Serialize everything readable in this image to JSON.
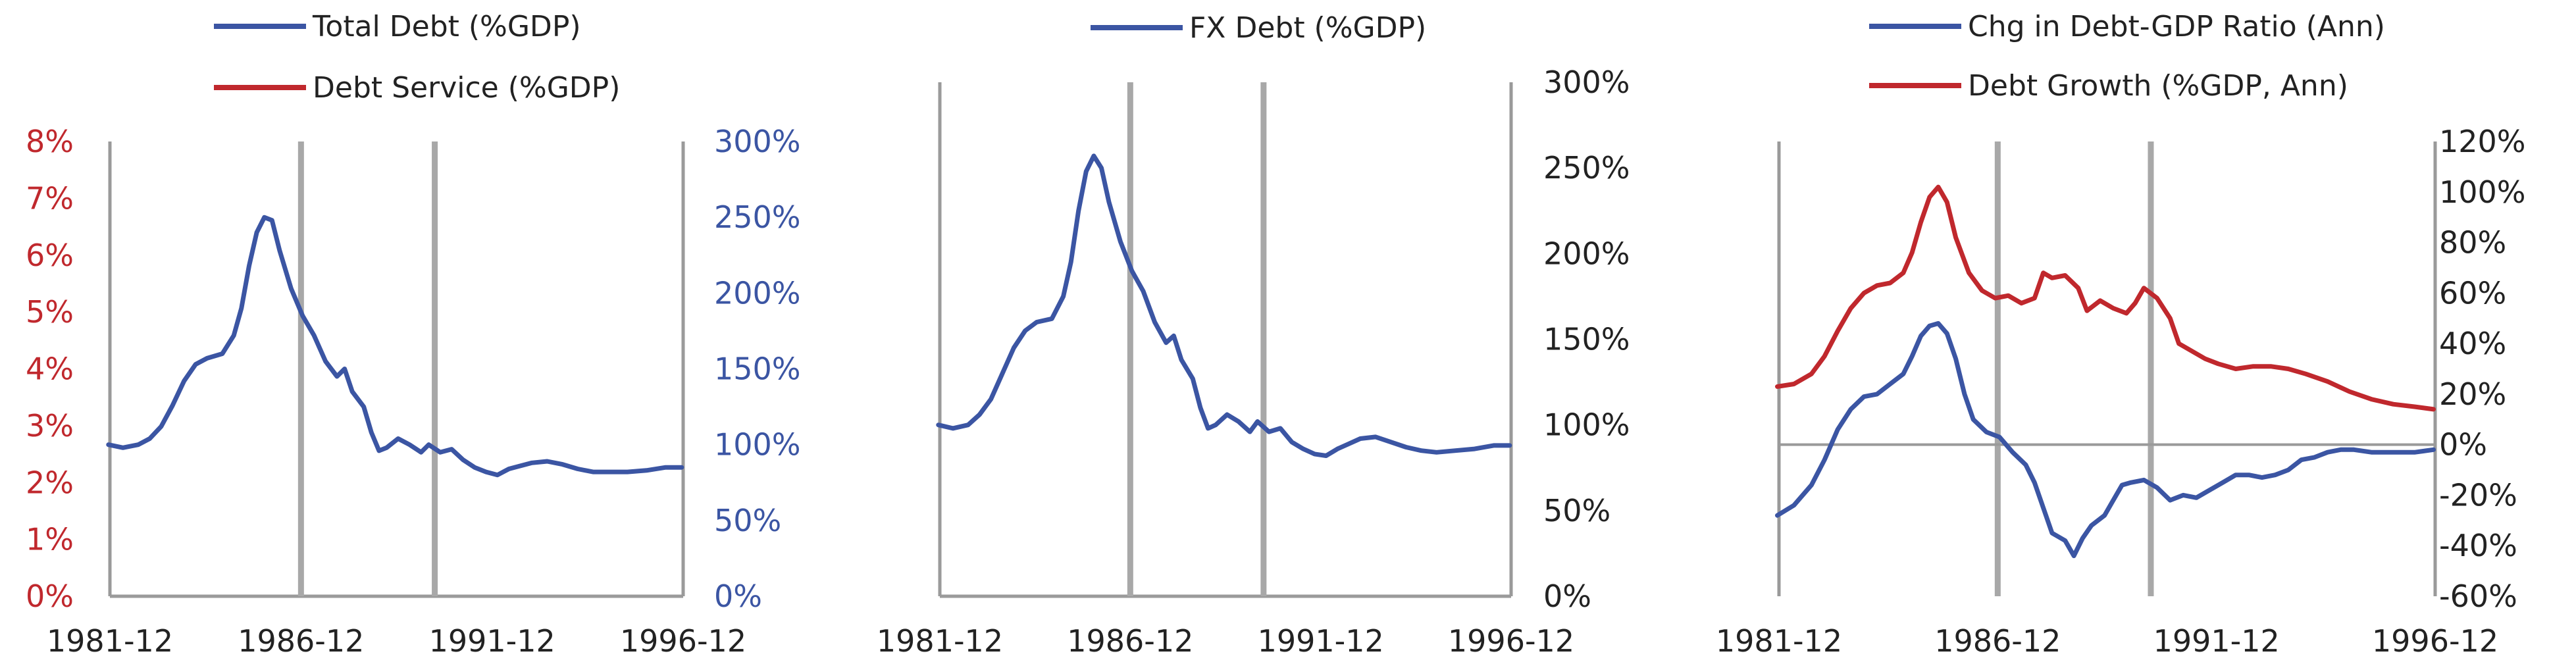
{
  "chart_data": [
    {
      "type": "line",
      "title": "",
      "x_ticks": [
        "1981-12",
        "1986-12",
        "1991-12",
        "1996-12"
      ],
      "xlim": [
        "1981-12",
        "1996-12"
      ],
      "event_lines": [
        "1986-12",
        "1990-06"
      ],
      "left_axis": {
        "ticks": [
          "0%",
          "1%",
          "2%",
          "3%",
          "4%",
          "5%",
          "6%",
          "7%",
          "8%"
        ],
        "ylim": [
          0,
          8
        ],
        "color": "#c0282d"
      },
      "right_axis": {
        "ticks": [
          "0%",
          "50%",
          "100%",
          "150%",
          "200%",
          "250%",
          "300%"
        ],
        "ylim": [
          0,
          300
        ],
        "color": "#3b55a3"
      },
      "legend": [
        "Total Debt (%GDP)",
        "Debt Service (%GDP)"
      ],
      "series": [
        {
          "name": "Total Debt (%GDP)",
          "axis": "right",
          "color": "#3b55a3",
          "points": [
            [
              1981.92,
              100
            ],
            [
              1982.3,
              98
            ],
            [
              1982.7,
              100
            ],
            [
              1983.0,
              104
            ],
            [
              1983.3,
              112
            ],
            [
              1983.6,
              126
            ],
            [
              1983.9,
              142
            ],
            [
              1984.2,
              153
            ],
            [
              1984.5,
              157
            ],
            [
              1984.9,
              160
            ],
            [
              1985.2,
              172
            ],
            [
              1985.4,
              190
            ],
            [
              1985.6,
              218
            ],
            [
              1985.8,
              240
            ],
            [
              1986.0,
              250
            ],
            [
              1986.2,
              248
            ],
            [
              1986.4,
              228
            ],
            [
              1986.7,
              203
            ],
            [
              1987.0,
              185
            ],
            [
              1987.3,
              172
            ],
            [
              1987.6,
              155
            ],
            [
              1987.9,
              145
            ],
            [
              1988.1,
              150
            ],
            [
              1988.3,
              135
            ],
            [
              1988.6,
              125
            ],
            [
              1988.8,
              108
            ],
            [
              1989.0,
              96
            ],
            [
              1989.2,
              98
            ],
            [
              1989.5,
              104
            ],
            [
              1989.8,
              100
            ],
            [
              1990.1,
              95
            ],
            [
              1990.3,
              100
            ],
            [
              1990.6,
              95
            ],
            [
              1990.9,
              97
            ],
            [
              1991.2,
              90
            ],
            [
              1991.5,
              85
            ],
            [
              1991.8,
              82
            ],
            [
              1992.1,
              80
            ],
            [
              1992.4,
              84
            ],
            [
              1992.7,
              86
            ],
            [
              1993.0,
              88
            ],
            [
              1993.4,
              89
            ],
            [
              1993.8,
              87
            ],
            [
              1994.2,
              84
            ],
            [
              1994.6,
              82
            ],
            [
              1995.0,
              82
            ],
            [
              1995.5,
              82
            ],
            [
              1996.0,
              83
            ],
            [
              1996.5,
              85
            ],
            [
              1996.92,
              85
            ]
          ]
        },
        {
          "name": "Debt Service (%GDP)",
          "axis": "left",
          "color": "#c0282d",
          "points": []
        }
      ]
    },
    {
      "type": "line",
      "title": "",
      "x_ticks": [
        "1981-12",
        "1986-12",
        "1991-12",
        "1996-12"
      ],
      "xlim": [
        "1981-12",
        "1996-12"
      ],
      "event_lines": [
        "1986-12",
        "1990-06"
      ],
      "right_axis": {
        "ticks": [
          "0%",
          "50%",
          "100%",
          "150%",
          "200%",
          "250%",
          "300%"
        ],
        "ylim": [
          0,
          300
        ],
        "color": "#222222"
      },
      "legend": [
        "FX Debt (%GDP)"
      ],
      "series": [
        {
          "name": "FX Debt (%GDP)",
          "axis": "right",
          "color": "#3b55a3",
          "points": [
            [
              1981.92,
              100
            ],
            [
              1982.3,
              98
            ],
            [
              1982.7,
              100
            ],
            [
              1983.0,
              106
            ],
            [
              1983.3,
              115
            ],
            [
              1983.6,
              130
            ],
            [
              1983.9,
              145
            ],
            [
              1984.2,
              155
            ],
            [
              1984.5,
              160
            ],
            [
              1984.9,
              162
            ],
            [
              1985.2,
              175
            ],
            [
              1985.4,
              195
            ],
            [
              1985.6,
              225
            ],
            [
              1985.8,
              248
            ],
            [
              1986.0,
              257
            ],
            [
              1986.2,
              250
            ],
            [
              1986.4,
              230
            ],
            [
              1986.7,
              207
            ],
            [
              1987.0,
              190
            ],
            [
              1987.3,
              178
            ],
            [
              1987.6,
              160
            ],
            [
              1987.9,
              148
            ],
            [
              1988.1,
              152
            ],
            [
              1988.3,
              138
            ],
            [
              1988.6,
              127
            ],
            [
              1988.8,
              110
            ],
            [
              1989.0,
              98
            ],
            [
              1989.2,
              100
            ],
            [
              1989.5,
              106
            ],
            [
              1989.8,
              102
            ],
            [
              1990.1,
              96
            ],
            [
              1990.3,
              102
            ],
            [
              1990.6,
              96
            ],
            [
              1990.9,
              98
            ],
            [
              1991.2,
              90
            ],
            [
              1991.5,
              86
            ],
            [
              1991.8,
              83
            ],
            [
              1992.1,
              82
            ],
            [
              1992.4,
              86
            ],
            [
              1992.7,
              89
            ],
            [
              1993.0,
              92
            ],
            [
              1993.4,
              93
            ],
            [
              1993.8,
              90
            ],
            [
              1994.2,
              87
            ],
            [
              1994.6,
              85
            ],
            [
              1995.0,
              84
            ],
            [
              1995.5,
              85
            ],
            [
              1996.0,
              86
            ],
            [
              1996.5,
              88
            ],
            [
              1996.92,
              88
            ]
          ]
        }
      ]
    },
    {
      "type": "line",
      "title": "",
      "x_ticks": [
        "1981-12",
        "1986-12",
        "1991-12",
        "1996-12"
      ],
      "xlim": [
        "1981-12",
        "1996-12"
      ],
      "event_lines": [
        "1986-12",
        "1990-06"
      ],
      "zero_line": true,
      "right_axis": {
        "ticks": [
          "-60%",
          "-40%",
          "-20%",
          "0%",
          "20%",
          "40%",
          "60%",
          "80%",
          "100%",
          "120%"
        ],
        "ylim": [
          -60,
          120
        ],
        "color": "#222222"
      },
      "legend": [
        "Chg in Debt-GDP Ratio (Ann)",
        "Debt Growth (%GDP, Ann)"
      ],
      "series": [
        {
          "name": "Chg in Debt-GDP Ratio (Ann)",
          "axis": "right",
          "color": "#3b55a3",
          "points": [
            [
              1981.92,
              -28
            ],
            [
              1982.3,
              -24
            ],
            [
              1982.7,
              -16
            ],
            [
              1983.0,
              -6
            ],
            [
              1983.3,
              6
            ],
            [
              1983.6,
              14
            ],
            [
              1983.9,
              19
            ],
            [
              1984.2,
              20
            ],
            [
              1984.5,
              24
            ],
            [
              1984.8,
              28
            ],
            [
              1985.0,
              35
            ],
            [
              1985.2,
              43
            ],
            [
              1985.4,
              47
            ],
            [
              1985.6,
              48
            ],
            [
              1985.8,
              44
            ],
            [
              1986.0,
              34
            ],
            [
              1986.2,
              20
            ],
            [
              1986.4,
              10
            ],
            [
              1986.7,
              5
            ],
            [
              1987.0,
              3
            ],
            [
              1987.3,
              -3
            ],
            [
              1987.6,
              -8
            ],
            [
              1987.8,
              -15
            ],
            [
              1988.0,
              -25
            ],
            [
              1988.2,
              -35
            ],
            [
              1988.5,
              -38
            ],
            [
              1988.7,
              -44
            ],
            [
              1988.9,
              -37
            ],
            [
              1989.1,
              -32
            ],
            [
              1989.4,
              -28
            ],
            [
              1989.6,
              -22
            ],
            [
              1989.8,
              -16
            ],
            [
              1990.0,
              -15
            ],
            [
              1990.3,
              -14
            ],
            [
              1990.6,
              -17
            ],
            [
              1990.9,
              -22
            ],
            [
              1991.2,
              -20
            ],
            [
              1991.5,
              -21
            ],
            [
              1991.8,
              -18
            ],
            [
              1992.1,
              -15
            ],
            [
              1992.4,
              -12
            ],
            [
              1992.7,
              -12
            ],
            [
              1993.0,
              -13
            ],
            [
              1993.3,
              -12
            ],
            [
              1993.6,
              -10
            ],
            [
              1993.9,
              -6
            ],
            [
              1994.2,
              -5
            ],
            [
              1994.5,
              -3
            ],
            [
              1994.8,
              -2
            ],
            [
              1995.1,
              -2
            ],
            [
              1995.5,
              -3
            ],
            [
              1996.0,
              -3
            ],
            [
              1996.5,
              -3
            ],
            [
              1996.92,
              -2
            ]
          ]
        },
        {
          "name": "Debt Growth (%GDP, Ann)",
          "axis": "right",
          "color": "#c0282d",
          "points": [
            [
              1981.92,
              23
            ],
            [
              1982.3,
              24
            ],
            [
              1982.7,
              28
            ],
            [
              1983.0,
              35
            ],
            [
              1983.3,
              45
            ],
            [
              1983.6,
              54
            ],
            [
              1983.9,
              60
            ],
            [
              1984.2,
              63
            ],
            [
              1984.5,
              64
            ],
            [
              1984.8,
              68
            ],
            [
              1985.0,
              76
            ],
            [
              1985.2,
              88
            ],
            [
              1985.4,
              98
            ],
            [
              1985.6,
              102
            ],
            [
              1985.8,
              96
            ],
            [
              1986.0,
              82
            ],
            [
              1986.3,
              68
            ],
            [
              1986.6,
              61
            ],
            [
              1986.9,
              58
            ],
            [
              1987.2,
              59
            ],
            [
              1987.5,
              56
            ],
            [
              1987.8,
              58
            ],
            [
              1988.0,
              68
            ],
            [
              1988.2,
              66
            ],
            [
              1988.5,
              67
            ],
            [
              1988.8,
              62
            ],
            [
              1989.0,
              53
            ],
            [
              1989.3,
              57
            ],
            [
              1989.6,
              54
            ],
            [
              1989.9,
              52
            ],
            [
              1990.1,
              56
            ],
            [
              1990.3,
              62
            ],
            [
              1990.6,
              58
            ],
            [
              1990.9,
              50
            ],
            [
              1991.1,
              40
            ],
            [
              1991.4,
              37
            ],
            [
              1991.7,
              34
            ],
            [
              1992.0,
              32
            ],
            [
              1992.4,
              30
            ],
            [
              1992.8,
              31
            ],
            [
              1993.2,
              31
            ],
            [
              1993.6,
              30
            ],
            [
              1994.0,
              28
            ],
            [
              1994.5,
              25
            ],
            [
              1995.0,
              21
            ],
            [
              1995.5,
              18
            ],
            [
              1996.0,
              16
            ],
            [
              1996.5,
              15
            ],
            [
              1996.92,
              14
            ]
          ]
        }
      ]
    }
  ]
}
